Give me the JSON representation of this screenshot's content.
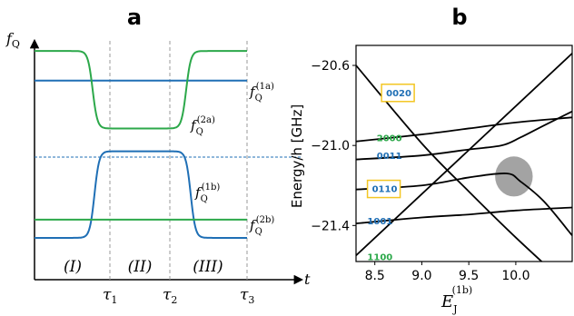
{
  "colors": {
    "blue": "#1f6fb5",
    "green": "#2ca84a",
    "black": "#000000",
    "highlight": "#f3c623",
    "ellipse": "#999999"
  },
  "chart_data": [
    {
      "panel": "a",
      "type": "line",
      "ylabel": "f",
      "ylabel_sub": "Q",
      "xlabel": "t",
      "x_ticks": [
        {
          "label": "τ",
          "sub": "1"
        },
        {
          "label": "τ",
          "sub": "2"
        },
        {
          "label": "τ",
          "sub": "3"
        }
      ],
      "regions": [
        "(I)",
        "(II)",
        "(III)"
      ],
      "series": [
        {
          "name": "f",
          "sub": "Q",
          "sup": "(1a)",
          "color": "blue",
          "level": 0.73
        },
        {
          "name": "f",
          "sub": "Q",
          "sup": "(2a)",
          "color": "green",
          "levels": [
            0.86,
            0.52,
            0.86
          ]
        },
        {
          "name": "f",
          "sub": "Q",
          "sup": "(1b)",
          "color": "blue",
          "levels": [
            0.04,
            0.42,
            0.04
          ]
        },
        {
          "name": "f",
          "sub": "Q",
          "sup": "(2b)",
          "color": "green",
          "level": 0.12
        }
      ]
    },
    {
      "panel": "b",
      "type": "line",
      "ylabel": "Energy/h [GHz]",
      "xlabel": "E",
      "xlabel_sub": "J",
      "xlabel_sup": "(1b)",
      "xlim": [
        8.3,
        10.6
      ],
      "ylim": [
        -21.58,
        -20.5
      ],
      "xticks": [
        8.5,
        9.0,
        9.5,
        10.0
      ],
      "xtick_labels": [
        "8.5",
        "9.0",
        "9.5",
        "10.0"
      ],
      "yticks": [
        -20.6,
        -21.0,
        -21.4
      ],
      "ytick_labels": [
        "−20.6",
        "−21.0",
        "−21.4"
      ],
      "state_labels": [
        {
          "text": "0020",
          "color": "blue",
          "boxed": true,
          "x": 8.62,
          "y": -20.735
        },
        {
          "text": "2000",
          "color": "green",
          "boxed": false,
          "x": 8.52,
          "y": -20.96
        },
        {
          "text": "0011",
          "color": "blue",
          "boxed": false,
          "x": 8.52,
          "y": -21.05
        },
        {
          "text": "0110",
          "color": "blue",
          "boxed": true,
          "x": 8.47,
          "y": -21.215
        },
        {
          "text": "1001",
          "color": "blue",
          "boxed": false,
          "x": 8.42,
          "y": -21.375
        },
        {
          "text": "1100",
          "color": "green",
          "boxed": false,
          "x": 8.42,
          "y": -21.555
        }
      ],
      "ellipse": {
        "cx": 9.98,
        "cy": -21.155,
        "rx": 0.2,
        "ry": 0.1
      },
      "series": [
        {
          "x": [
            8.3,
            9.0,
            9.5,
            10.0,
            10.6
          ],
          "y": [
            -20.6,
            -20.99,
            -21.23,
            -21.46,
            -21.72
          ]
        },
        {
          "x": [
            8.3,
            10.6
          ],
          "y": [
            -21.55,
            -20.54
          ]
        },
        {
          "x": [
            8.3,
            9.0,
            9.5,
            10.0,
            10.6
          ],
          "y": [
            -20.98,
            -20.945,
            -20.915,
            -20.885,
            -20.86
          ]
        },
        {
          "x": [
            8.3,
            9.0,
            9.5,
            9.85,
            10.05,
            10.3,
            10.6
          ],
          "y": [
            -21.07,
            -21.05,
            -21.02,
            -21.0,
            -20.96,
            -20.9,
            -20.83
          ]
        },
        {
          "x": [
            8.3,
            9.0,
            9.5,
            9.9,
            10.05,
            10.3,
            10.6
          ],
          "y": [
            -21.22,
            -21.2,
            -21.16,
            -21.14,
            -21.18,
            -21.28,
            -21.45
          ]
        },
        {
          "x": [
            8.3,
            9.0,
            9.5,
            10.0,
            10.6
          ],
          "y": [
            -21.39,
            -21.36,
            -21.345,
            -21.325,
            -21.31
          ]
        }
      ]
    }
  ]
}
